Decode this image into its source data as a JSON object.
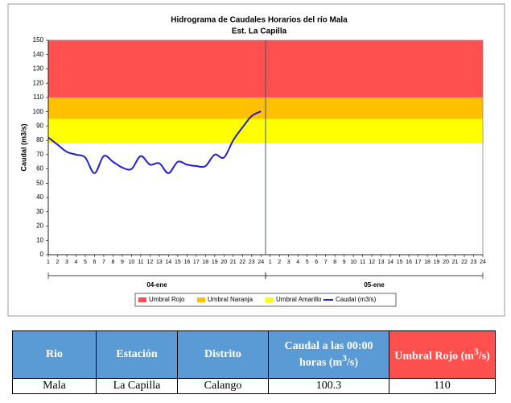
{
  "chart_data": {
    "type": "line",
    "title": "Hidrograma de Caudales Horarios del río Mala",
    "subtitle": "Est. La Capilla",
    "y_label": "Caudal  (m3/s)",
    "categories": [
      "1",
      "2",
      "3",
      "4",
      "5",
      "6",
      "7",
      "8",
      "9",
      "10",
      "11",
      "12",
      "13",
      "14",
      "15",
      "16",
      "17",
      "18",
      "19",
      "20",
      "21",
      "22",
      "23",
      "24",
      "1",
      "2",
      "3",
      "4",
      "5",
      "6",
      "7",
      "8",
      "9",
      "10",
      "11",
      "12",
      "13",
      "14",
      "15",
      "16",
      "17",
      "18",
      "19",
      "20",
      "21",
      "22",
      "23",
      "24"
    ],
    "groups": [
      "04-ene",
      "05-ene"
    ],
    "bands": [
      {
        "name": "Umbral Rojo",
        "color": "#ff5050",
        "range": [
          110,
          150
        ]
      },
      {
        "name": "Umbral Naranja",
        "color": "#ffc000",
        "range": [
          95,
          110
        ]
      },
      {
        "name": "Umbral Amarillo",
        "color": "#ffff00",
        "range": [
          78,
          95
        ]
      }
    ],
    "series": [
      {
        "name": "Caudal (m3/s)",
        "color": "#1f1fd0",
        "values": [
          82,
          77,
          72,
          70,
          68,
          57,
          69,
          65,
          61,
          60,
          69,
          63,
          64,
          57,
          65,
          63,
          62,
          62,
          70,
          68,
          80,
          89,
          97,
          100.3,
          null,
          null,
          null,
          null,
          null,
          null,
          null,
          null,
          null,
          null,
          null,
          null,
          null,
          null,
          null,
          null,
          null,
          null,
          null,
          null,
          null,
          null,
          null,
          null
        ]
      }
    ],
    "ylim": [
      0,
      150
    ],
    "yticks": [
      0,
      10,
      20,
      30,
      40,
      50,
      60,
      70,
      80,
      90,
      100,
      110,
      120,
      130,
      140,
      150
    ]
  },
  "table": {
    "header": [
      {
        "text": "Rio"
      },
      {
        "text": "Estación"
      },
      {
        "text": "Distrito"
      },
      {
        "text": "Caudal a las 00:00 horas (m",
        "sup": "3",
        "tail": "/s)"
      },
      {
        "text": "Umbral Rojo (m",
        "sup": "3",
        "tail": "/s)"
      }
    ],
    "rows": [
      [
        "Mala",
        "La Capilla",
        "Calango",
        "100.3",
        "110"
      ]
    ]
  }
}
